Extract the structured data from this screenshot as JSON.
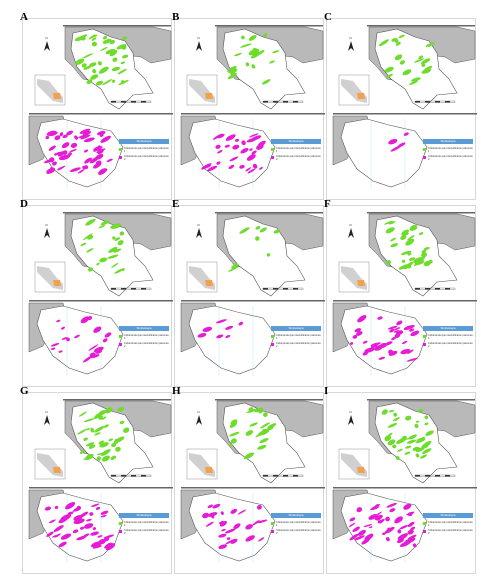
{
  "colors": {
    "green": "#6ddc2a",
    "magenta": "#e51bd6",
    "land": "#b9b9b9",
    "outline": "#555555",
    "legend_header": "#5b9bd5",
    "inset_land": "#d0d0d0",
    "inset_focus": "#f3a24a"
  },
  "legend": {
    "title": "Simbología",
    "green_label": "Coberturas que intensificaron patrones 1",
    "magenta_label": "Coberturas que intensificaron patrones 2"
  },
  "panels": [
    {
      "label": "A",
      "green_level": 0.9,
      "magenta_level": 1.0
    },
    {
      "label": "B",
      "green_level": 0.45,
      "magenta_level": 0.55
    },
    {
      "label": "C",
      "green_level": 0.5,
      "magenta_level": 0.08
    },
    {
      "label": "D",
      "green_level": 0.55,
      "magenta_level": 0.35
    },
    {
      "label": "E",
      "green_level": 0.2,
      "magenta_level": 0.12
    },
    {
      "label": "F",
      "green_level": 0.75,
      "magenta_level": 0.6
    },
    {
      "label": "G",
      "green_level": 0.85,
      "magenta_level": 0.75
    },
    {
      "label": "H",
      "green_level": 0.55,
      "magenta_level": 0.45
    },
    {
      "label": "I",
      "green_level": 0.95,
      "magenta_level": 0.8
    }
  ]
}
